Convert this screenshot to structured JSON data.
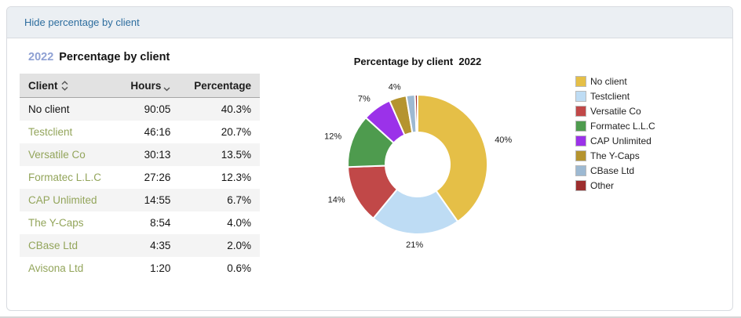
{
  "header": {
    "toggle_label": "Hide percentage by client"
  },
  "report": {
    "year": "2022",
    "title": "Percentage by client",
    "table": {
      "columns": [
        {
          "label": "Client",
          "sort": "both"
        },
        {
          "label": "Hours",
          "sort": "desc"
        },
        {
          "label": "Percentage",
          "sort": null
        }
      ],
      "rows": [
        {
          "client": "No client",
          "hours": "90:05",
          "percentage": "40.3%",
          "is_link": false
        },
        {
          "client": "Testclient",
          "hours": "46:16",
          "percentage": "20.7%",
          "is_link": true
        },
        {
          "client": "Versatile Co",
          "hours": "30:13",
          "percentage": "13.5%",
          "is_link": true
        },
        {
          "client": "Formatec L.L.C",
          "hours": "27:26",
          "percentage": "12.3%",
          "is_link": true
        },
        {
          "client": "CAP Unlimited",
          "hours": "14:55",
          "percentage": "6.7%",
          "is_link": true
        },
        {
          "client": "The Y-Caps",
          "hours": "8:54",
          "percentage": "4.0%",
          "is_link": true
        },
        {
          "client": "CBase Ltd",
          "hours": "4:35",
          "percentage": "2.0%",
          "is_link": true
        },
        {
          "client": "Avisona Ltd",
          "hours": "1:20",
          "percentage": "0.6%",
          "is_link": true
        }
      ]
    }
  },
  "chart_data": {
    "type": "pie",
    "subtype": "donut",
    "title": "Percentage by client  2022",
    "start_angle_deg": 0,
    "direction": "clockwise",
    "legend_position": "right",
    "slices": [
      {
        "name": "No client",
        "value": 40.3,
        "label": "40%",
        "color": "#e5bf47"
      },
      {
        "name": "Testclient",
        "value": 20.7,
        "label": "21%",
        "color": "#bedcf4"
      },
      {
        "name": "Versatile Co",
        "value": 13.5,
        "label": "14%",
        "color": "#c14848"
      },
      {
        "name": "Formatec L.L.C",
        "value": 12.3,
        "label": "12%",
        "color": "#4e9b4e"
      },
      {
        "name": "CAP Unlimited",
        "value": 6.7,
        "label": "7%",
        "color": "#9b32e9"
      },
      {
        "name": "The Y-Caps",
        "value": 4.0,
        "label": "4%",
        "color": "#b5942f"
      },
      {
        "name": "CBase Ltd",
        "value": 2.0,
        "label": "",
        "color": "#9db9d2"
      },
      {
        "name": "Other",
        "value": 0.6,
        "label": "",
        "color": "#9c2e2e"
      }
    ]
  },
  "colors": {
    "card_border": "#d8dbe0",
    "band_bg": "#ebeff3",
    "link": "#2d6d9e",
    "year": "#8ea0d3",
    "client_link": "#93a55b",
    "thead_bg": "#e2e2e2",
    "stripe_bg": "#f4f4f4"
  }
}
